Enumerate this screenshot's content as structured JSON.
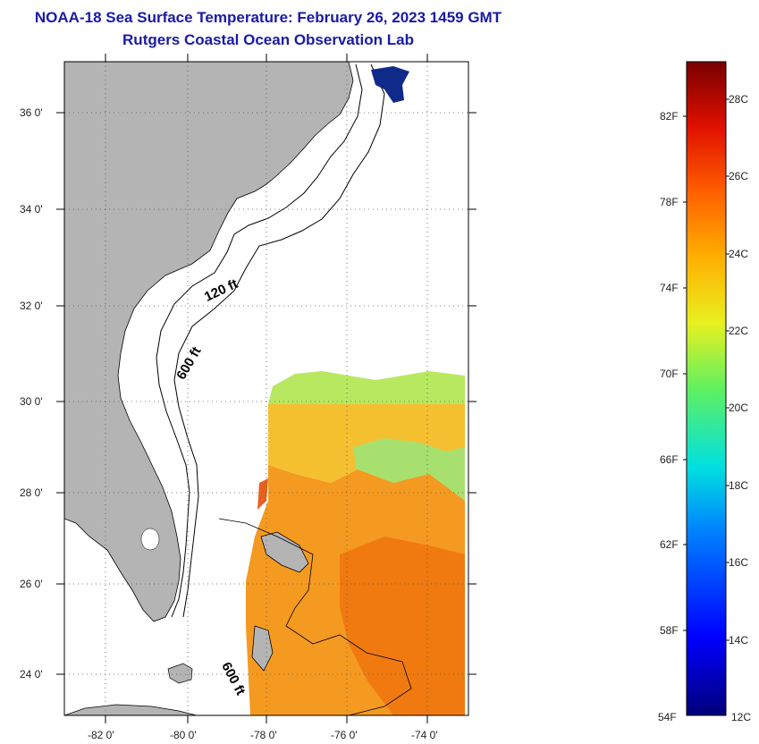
{
  "title_line1": "NOAA-18 Sea Surface Temperature:  February 26, 2023 1459 GMT",
  "title_line2": "Rutgers Coastal Ocean Observation Lab",
  "lat_labels": [
    "36 0'",
    "34 0'",
    "32 0'",
    "30 0'",
    "28 0'",
    "26 0'",
    "24 0'"
  ],
  "lon_labels": [
    "-82 0'",
    "-80 0'",
    "-78 0'",
    "-76 0'",
    "-74 0'"
  ],
  "contour_labels": [
    "120 ft",
    "600 ft",
    "600 ft"
  ],
  "colorbar": {
    "fahrenheit": [
      "82F",
      "78F",
      "74F",
      "70F",
      "66F",
      "62F",
      "58F",
      "54F"
    ],
    "celsius": [
      "28C",
      "26C",
      "24C",
      "22C",
      "20C",
      "18C",
      "16C",
      "14C",
      "12C"
    ]
  },
  "colors": {
    "title": "#1a1aa6",
    "land": "#b4b4b4",
    "warm": "#f07a10",
    "mid": "#f0b020",
    "cool": "#a0e060"
  }
}
